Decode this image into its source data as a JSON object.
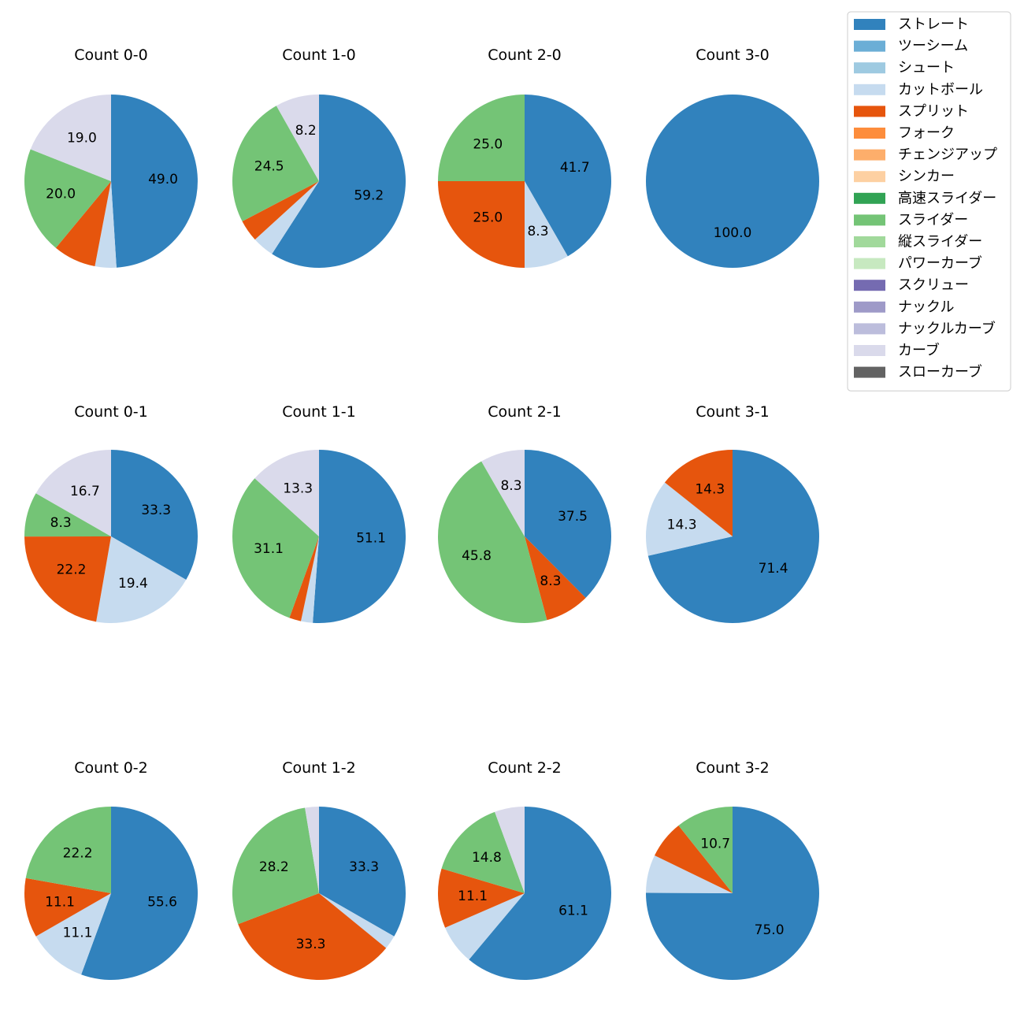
{
  "chart_data": {
    "type": "pie",
    "legend_position": "top-right",
    "categories": [
      {
        "name": "ストレート",
        "color": "#3182bd"
      },
      {
        "name": "ツーシーム",
        "color": "#6baed6"
      },
      {
        "name": "シュート",
        "color": "#9ecae1"
      },
      {
        "name": "カットボール",
        "color": "#c6dbef"
      },
      {
        "name": "スプリット",
        "color": "#e6550d"
      },
      {
        "name": "フォーク",
        "color": "#fd8d3c"
      },
      {
        "name": "チェンジアップ",
        "color": "#fdae6b"
      },
      {
        "name": "シンカー",
        "color": "#fdd0a2"
      },
      {
        "name": "高速スライダー",
        "color": "#31a354"
      },
      {
        "name": "スライダー",
        "color": "#74c476"
      },
      {
        "name": "縦スライダー",
        "color": "#a1d99b"
      },
      {
        "name": "パワーカーブ",
        "color": "#c7e9c0"
      },
      {
        "name": "スクリュー",
        "color": "#756bb1"
      },
      {
        "name": "ナックル",
        "color": "#9e9ac8"
      },
      {
        "name": "ナックルカーブ",
        "color": "#bcbddc"
      },
      {
        "name": "カーブ",
        "color": "#dadaeb"
      },
      {
        "name": "スローカーブ",
        "color": "#636363"
      }
    ],
    "pies": [
      {
        "title": "Count 0-0",
        "slices": [
          {
            "category": "ストレート",
            "value": 49.0,
            "label": "49.0"
          },
          {
            "category": "カットボール",
            "value": 4.0,
            "label": ""
          },
          {
            "category": "スプリット",
            "value": 8.0,
            "label": ""
          },
          {
            "category": "スライダー",
            "value": 20.0,
            "label": "20.0"
          },
          {
            "category": "カーブ",
            "value": 19.0,
            "label": "19.0"
          }
        ]
      },
      {
        "title": "Count 1-0",
        "slices": [
          {
            "category": "ストレート",
            "value": 59.2,
            "label": "59.2"
          },
          {
            "category": "カットボール",
            "value": 4.1,
            "label": ""
          },
          {
            "category": "スプリット",
            "value": 4.1,
            "label": ""
          },
          {
            "category": "スライダー",
            "value": 24.5,
            "label": "24.5"
          },
          {
            "category": "カーブ",
            "value": 8.2,
            "label": "8.2"
          }
        ]
      },
      {
        "title": "Count 2-0",
        "slices": [
          {
            "category": "ストレート",
            "value": 41.7,
            "label": "41.7"
          },
          {
            "category": "カットボール",
            "value": 8.3,
            "label": "8.3"
          },
          {
            "category": "スプリット",
            "value": 25.0,
            "label": "25.0"
          },
          {
            "category": "スライダー",
            "value": 25.0,
            "label": "25.0"
          }
        ]
      },
      {
        "title": "Count 3-0",
        "slices": [
          {
            "category": "ストレート",
            "value": 100.0,
            "label": "100.0"
          }
        ]
      },
      {
        "title": "Count 0-1",
        "slices": [
          {
            "category": "ストレート",
            "value": 33.3,
            "label": "33.3"
          },
          {
            "category": "カットボール",
            "value": 19.4,
            "label": "19.4"
          },
          {
            "category": "スプリット",
            "value": 22.2,
            "label": "22.2"
          },
          {
            "category": "スライダー",
            "value": 8.3,
            "label": "8.3"
          },
          {
            "category": "カーブ",
            "value": 16.7,
            "label": "16.7"
          }
        ]
      },
      {
        "title": "Count 1-1",
        "slices": [
          {
            "category": "ストレート",
            "value": 51.1,
            "label": "51.1"
          },
          {
            "category": "カットボール",
            "value": 2.2,
            "label": ""
          },
          {
            "category": "スプリット",
            "value": 2.2,
            "label": ""
          },
          {
            "category": "スライダー",
            "value": 31.1,
            "label": "31.1"
          },
          {
            "category": "カーブ",
            "value": 13.3,
            "label": "13.3"
          }
        ]
      },
      {
        "title": "Count 2-1",
        "slices": [
          {
            "category": "ストレート",
            "value": 37.5,
            "label": "37.5"
          },
          {
            "category": "スプリット",
            "value": 8.3,
            "label": "8.3"
          },
          {
            "category": "スライダー",
            "value": 45.8,
            "label": "45.8"
          },
          {
            "category": "カーブ",
            "value": 8.3,
            "label": "8.3"
          }
        ]
      },
      {
        "title": "Count 3-1",
        "slices": [
          {
            "category": "ストレート",
            "value": 71.4,
            "label": "71.4"
          },
          {
            "category": "カットボール",
            "value": 14.3,
            "label": "14.3"
          },
          {
            "category": "スプリット",
            "value": 14.3,
            "label": "14.3"
          }
        ]
      },
      {
        "title": "Count 0-2",
        "slices": [
          {
            "category": "ストレート",
            "value": 55.6,
            "label": "55.6"
          },
          {
            "category": "カットボール",
            "value": 11.1,
            "label": "11.1"
          },
          {
            "category": "スプリット",
            "value": 11.1,
            "label": "11.1"
          },
          {
            "category": "スライダー",
            "value": 22.2,
            "label": "22.2"
          }
        ]
      },
      {
        "title": "Count 1-2",
        "slices": [
          {
            "category": "ストレート",
            "value": 33.3,
            "label": "33.3"
          },
          {
            "category": "カットボール",
            "value": 2.6,
            "label": ""
          },
          {
            "category": "スプリット",
            "value": 33.3,
            "label": "33.3"
          },
          {
            "category": "スライダー",
            "value": 28.2,
            "label": "28.2"
          },
          {
            "category": "カーブ",
            "value": 2.6,
            "label": ""
          }
        ]
      },
      {
        "title": "Count 2-2",
        "slices": [
          {
            "category": "ストレート",
            "value": 61.1,
            "label": "61.1"
          },
          {
            "category": "カットボール",
            "value": 7.4,
            "label": ""
          },
          {
            "category": "スプリット",
            "value": 11.1,
            "label": "11.1"
          },
          {
            "category": "スライダー",
            "value": 14.8,
            "label": "14.8"
          },
          {
            "category": "カーブ",
            "value": 5.6,
            "label": ""
          }
        ]
      },
      {
        "title": "Count 3-2",
        "slices": [
          {
            "category": "ストレート",
            "value": 75.0,
            "label": "75.0"
          },
          {
            "category": "カットボール",
            "value": 7.1,
            "label": ""
          },
          {
            "category": "スプリット",
            "value": 7.1,
            "label": ""
          },
          {
            "category": "スライダー",
            "value": 10.7,
            "label": "10.7"
          }
        ]
      }
    ]
  }
}
